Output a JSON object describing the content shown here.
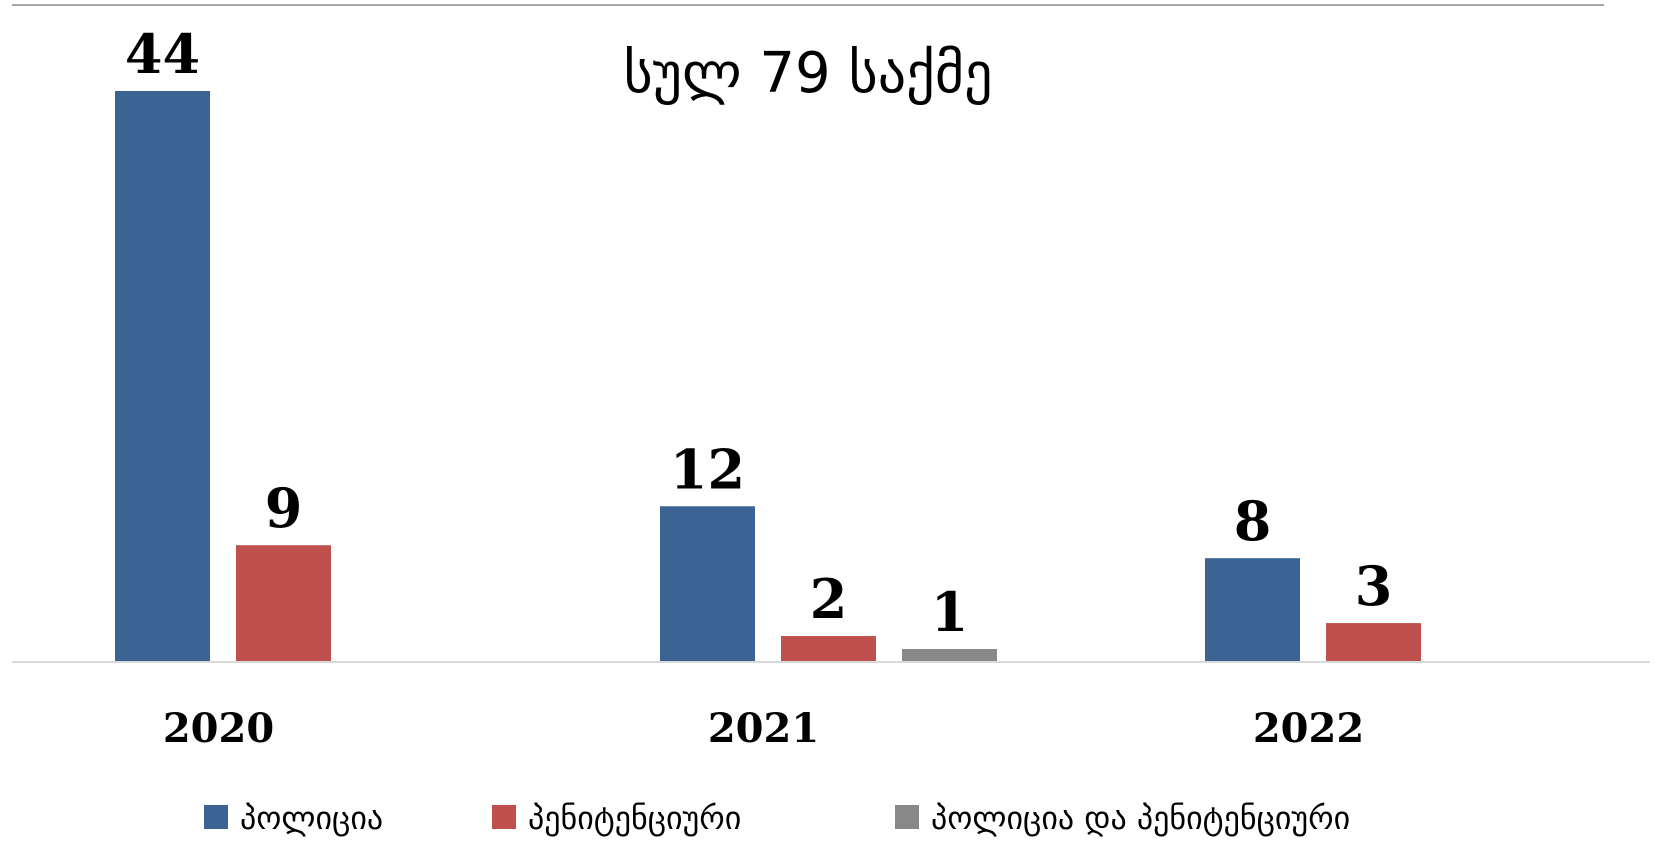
{
  "chart_data": {
    "type": "bar",
    "title": "სულ 79 საქმე",
    "categories": [
      "2020",
      "2021",
      "2022"
    ],
    "series": [
      {
        "name": "პოლიცია",
        "color": "#3b6494",
        "values": [
          44,
          12,
          8
        ]
      },
      {
        "name": "პენიტენციური",
        "color": "#c0504d",
        "values": [
          9,
          2,
          3
        ]
      },
      {
        "name": "პოლიცია და პენიტენციური",
        "color": "#888888",
        "values": [
          null,
          1,
          null
        ]
      }
    ],
    "ylim": [
      0,
      44
    ],
    "grid": false,
    "legend_position": "bottom",
    "data_labels": true
  }
}
